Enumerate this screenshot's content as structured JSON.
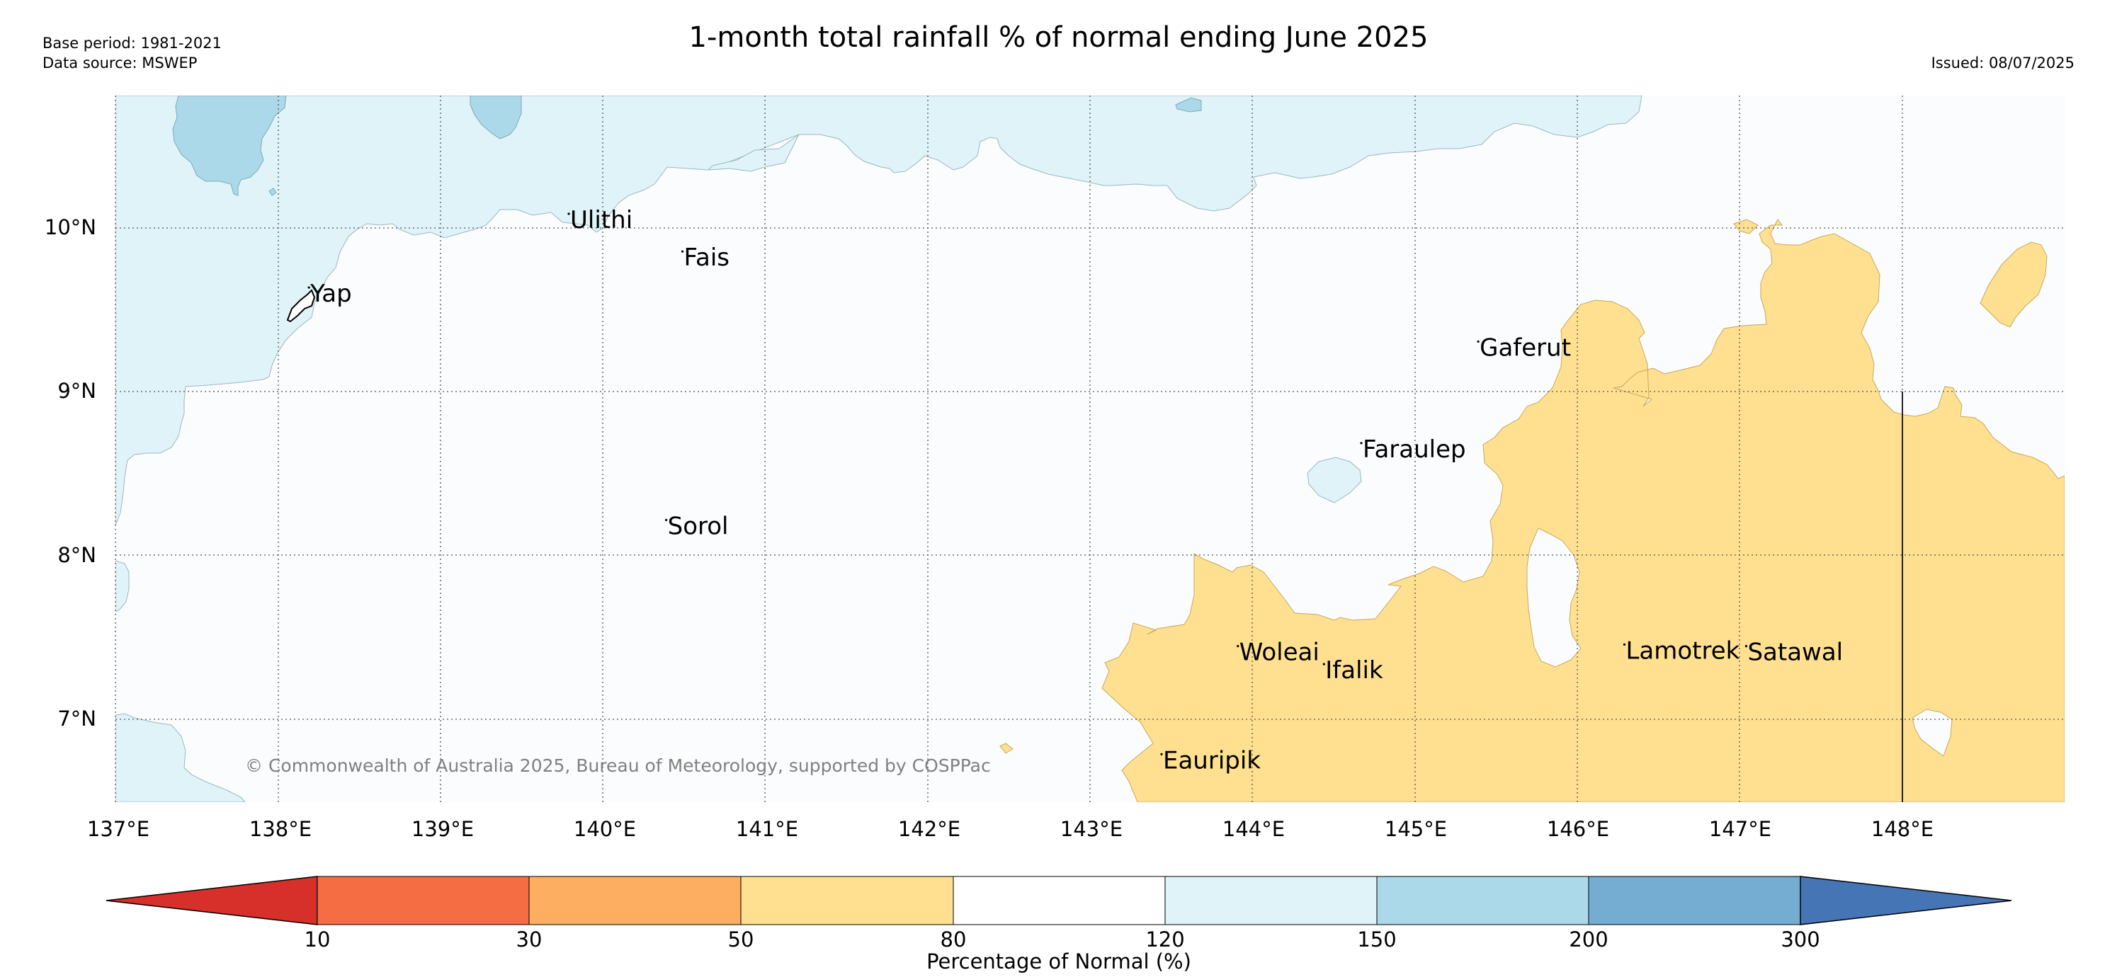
{
  "header": {
    "title": "1-month total rainfall % of normal ending June 2025",
    "base_period": "Base period: 1981-2021",
    "data_source": "Data source: MSWEP",
    "issued": "Issued: 08/07/2025"
  },
  "map": {
    "lat_labels": [
      "10°N",
      "9°N",
      "8°N",
      "7°N"
    ],
    "lon_labels": [
      "137°E",
      "138°E",
      "139°E",
      "140°E",
      "141°E",
      "142°E",
      "143°E",
      "144°E",
      "145°E",
      "146°E",
      "147°E",
      "148°E"
    ],
    "places": [
      {
        "name": "Ulithi",
        "lon": 139.8,
        "lat": 10.0
      },
      {
        "name": "Fais",
        "lon": 140.5,
        "lat": 9.77
      },
      {
        "name": "Yap",
        "lon": 138.2,
        "lat": 9.55
      },
      {
        "name": "Gaferut",
        "lon": 145.4,
        "lat": 9.22
      },
      {
        "name": "Faraulep",
        "lon": 144.68,
        "lat": 8.6
      },
      {
        "name": "Sorol",
        "lon": 140.4,
        "lat": 8.13
      },
      {
        "name": "Woleai",
        "lon": 143.92,
        "lat": 7.36
      },
      {
        "name": "Ifalik",
        "lon": 144.45,
        "lat": 7.25
      },
      {
        "name": "Lamotrek",
        "lon": 146.3,
        "lat": 7.37
      },
      {
        "name": "Satawal",
        "lon": 147.05,
        "lat": 7.36
      },
      {
        "name": "Eauripik",
        "lon": 143.45,
        "lat": 6.7
      }
    ],
    "copyright": "© Commonwealth of Australia 2025, Bureau of Meteorology, supported by COSPPac"
  },
  "colorbar": {
    "title": "Percentage of Normal (%)",
    "thresholds": [
      "10",
      "30",
      "50",
      "80",
      "120",
      "150",
      "200",
      "300"
    ],
    "bins": [
      {
        "range": "<10",
        "color": "#d7302a"
      },
      {
        "range": "10-30",
        "color": "#f46d43"
      },
      {
        "range": "30-50",
        "color": "#fdae61"
      },
      {
        "range": "50-80",
        "color": "#fee090"
      },
      {
        "range": "80-120",
        "color": "#ffffff"
      },
      {
        "range": "120-150",
        "color": "#e0f3f8"
      },
      {
        "range": "150-200",
        "color": "#abd9e9"
      },
      {
        "range": "200-300",
        "color": "#74add1"
      },
      {
        "range": ">300",
        "color": "#4575b4"
      }
    ]
  }
}
